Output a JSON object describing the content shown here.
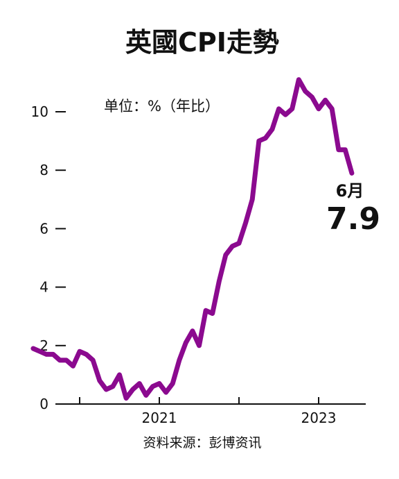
{
  "chart_data": {
    "type": "line",
    "title": "英國CPI走勢",
    "unit_label": "单位：%（年比）",
    "source": "资料来源：彭博资讯",
    "ylim": [
      0,
      11.5
    ],
    "y_ticks": [
      0,
      2,
      4,
      6,
      8,
      10
    ],
    "x_tick_dates": [
      "2020-01",
      "2021-01",
      "2022-01",
      "2023-01"
    ],
    "x_tick_labels": [
      {
        "date": "2021-01",
        "label": "2021"
      },
      {
        "date": "2023-01",
        "label": "2023"
      }
    ],
    "grid": false,
    "series": [
      {
        "color": "#8b0a8f",
        "points": [
          [
            "2019-06",
            1.9
          ],
          [
            "2019-07",
            1.8
          ],
          [
            "2019-08",
            1.7
          ],
          [
            "2019-09",
            1.7
          ],
          [
            "2019-10",
            1.5
          ],
          [
            "2019-11",
            1.5
          ],
          [
            "2019-12",
            1.3
          ],
          [
            "2020-01",
            1.8
          ],
          [
            "2020-02",
            1.7
          ],
          [
            "2020-03",
            1.5
          ],
          [
            "2020-04",
            0.8
          ],
          [
            "2020-05",
            0.5
          ],
          [
            "2020-06",
            0.6
          ],
          [
            "2020-07",
            1.0
          ],
          [
            "2020-08",
            0.2
          ],
          [
            "2020-09",
            0.5
          ],
          [
            "2020-10",
            0.7
          ],
          [
            "2020-11",
            0.3
          ],
          [
            "2020-12",
            0.6
          ],
          [
            "2021-01",
            0.7
          ],
          [
            "2021-02",
            0.4
          ],
          [
            "2021-03",
            0.7
          ],
          [
            "2021-04",
            1.5
          ],
          [
            "2021-05",
            2.1
          ],
          [
            "2021-06",
            2.5
          ],
          [
            "2021-07",
            2.0
          ],
          [
            "2021-08",
            3.2
          ],
          [
            "2021-09",
            3.1
          ],
          [
            "2021-10",
            4.2
          ],
          [
            "2021-11",
            5.1
          ],
          [
            "2021-12",
            5.4
          ],
          [
            "2022-01",
            5.5
          ],
          [
            "2022-02",
            6.2
          ],
          [
            "2022-03",
            7.0
          ],
          [
            "2022-04",
            9.0
          ],
          [
            "2022-05",
            9.1
          ],
          [
            "2022-06",
            9.4
          ],
          [
            "2022-07",
            10.1
          ],
          [
            "2022-08",
            9.9
          ],
          [
            "2022-09",
            10.1
          ],
          [
            "2022-10",
            11.1
          ],
          [
            "2022-11",
            10.7
          ],
          [
            "2022-12",
            10.5
          ],
          [
            "2023-01",
            10.1
          ],
          [
            "2023-02",
            10.4
          ],
          [
            "2023-03",
            10.1
          ],
          [
            "2023-04",
            8.7
          ],
          [
            "2023-05",
            8.7
          ],
          [
            "2023-06",
            7.9
          ]
        ]
      }
    ],
    "annotation": {
      "month_label": "6月",
      "value_label": "7.9"
    }
  }
}
